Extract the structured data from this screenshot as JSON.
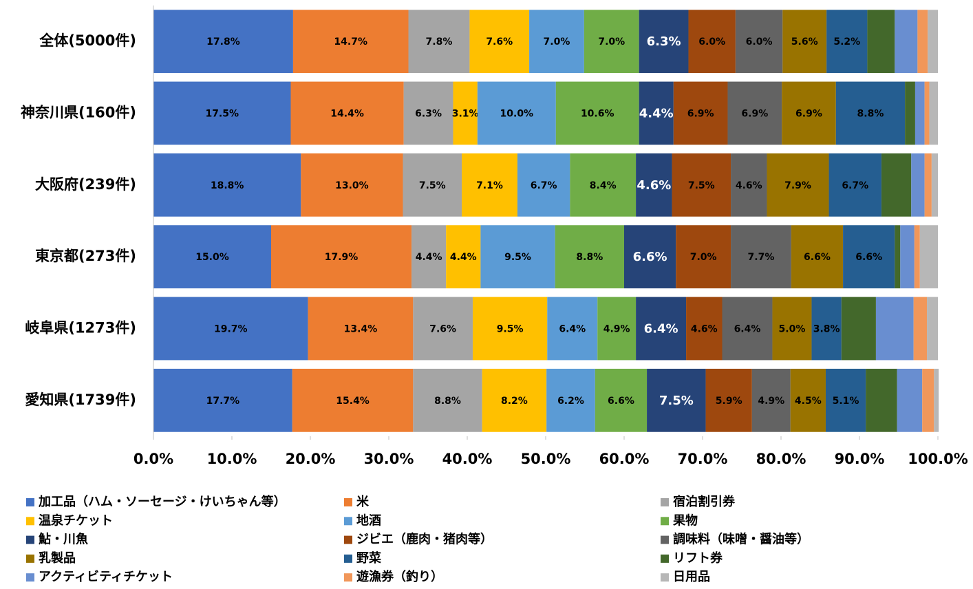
{
  "chart_data": {
    "type": "stacked_bar_horizontal",
    "categories": [
      "全体(5000件)",
      "神奈川県(160件)",
      "大阪府(239件)",
      "東京都(273件)",
      "岐阜県(1273件)",
      "愛知県(1739件)"
    ],
    "xlim": [
      0,
      100
    ],
    "xticks": [
      {
        "value": 0,
        "label": "0.0%"
      },
      {
        "value": 10,
        "label": "10.0%"
      },
      {
        "value": 20,
        "label": "20.0%"
      },
      {
        "value": 30,
        "label": "30.0%"
      },
      {
        "value": 40,
        "label": "40.0%"
      },
      {
        "value": 50,
        "label": "50.0%"
      },
      {
        "value": 60,
        "label": "60.0%"
      },
      {
        "value": 70,
        "label": "70.0%"
      },
      {
        "value": 80,
        "label": "80.0%"
      },
      {
        "value": 90,
        "label": "90.0%"
      },
      {
        "value": 100,
        "label": "100.0%"
      }
    ],
    "legend": "bottom",
    "series": [
      {
        "name": "加工品（ハム・ソーセージ・けいちゃん等）",
        "color": "#4472c4",
        "values": [
          17.8,
          17.5,
          18.8,
          15.0,
          19.7,
          17.7
        ],
        "value_labels": [
          "17.8%",
          "17.5%",
          "18.8%",
          "15.0%",
          "19.7%",
          "17.7%"
        ]
      },
      {
        "name": "米",
        "color": "#ed7d31",
        "values": [
          14.7,
          14.4,
          13.0,
          17.9,
          13.4,
          15.4
        ],
        "value_labels": [
          "14.7%",
          "14.4%",
          "13.0%",
          "17.9%",
          "13.4%",
          "15.4%"
        ]
      },
      {
        "name": "宿泊割引券",
        "color": "#a5a5a5",
        "values": [
          7.8,
          6.3,
          7.5,
          4.4,
          7.6,
          8.8
        ],
        "value_labels": [
          "7.8%",
          "6.3%",
          "7.5%",
          "4.4%",
          "7.6%",
          "8.8%"
        ]
      },
      {
        "name": "温泉チケット",
        "color": "#ffc000",
        "values": [
          7.6,
          3.1,
          7.1,
          4.4,
          9.5,
          8.2
        ],
        "value_labels": [
          "7.6%",
          "3.1%",
          "7.1%",
          "4.4%",
          "9.5%",
          "8.2%"
        ]
      },
      {
        "name": "地酒",
        "color": "#5b9bd5",
        "values": [
          7.0,
          10.0,
          6.7,
          9.5,
          6.4,
          6.2
        ],
        "value_labels": [
          "7.0%",
          "10.0%",
          "6.7%",
          "9.5%",
          "6.4%",
          "6.2%"
        ]
      },
      {
        "name": "果物",
        "color": "#70ad47",
        "values": [
          7.0,
          10.6,
          8.4,
          8.8,
          4.9,
          6.6
        ],
        "value_labels": [
          "7.0%",
          "10.6%",
          "8.4%",
          "8.8%",
          "4.9%",
          "6.6%"
        ]
      },
      {
        "name": "鮎・川魚",
        "color": "#264478",
        "values": [
          6.3,
          4.4,
          4.6,
          6.6,
          6.4,
          7.5
        ],
        "value_labels": [
          "6.3%",
          "4.4%",
          "4.6%",
          "6.6%",
          "6.4%",
          "7.5%"
        ]
      },
      {
        "name": "ジビエ（鹿肉・猪肉等）",
        "color": "#9e480e",
        "values": [
          6.0,
          6.9,
          7.5,
          7.0,
          4.6,
          5.9
        ],
        "value_labels": [
          "6.0%",
          "6.9%",
          "7.5%",
          "7.0%",
          "4.6%",
          "5.9%"
        ]
      },
      {
        "name": "調味料（味噌・醤油等）",
        "color": "#636363",
        "values": [
          6.0,
          6.9,
          4.6,
          7.7,
          6.4,
          4.9
        ],
        "value_labels": [
          "6.0%",
          "6.9%",
          "4.6%",
          "7.7%",
          "6.4%",
          "4.9%"
        ]
      },
      {
        "name": "乳製品",
        "color": "#997300",
        "values": [
          5.6,
          6.9,
          7.9,
          6.6,
          5.0,
          4.5
        ],
        "value_labels": [
          "5.6%",
          "6.9%",
          "7.9%",
          "6.6%",
          "5.0%",
          "4.5%"
        ]
      },
      {
        "name": "野菜",
        "color": "#255e91",
        "values": [
          5.2,
          8.8,
          6.7,
          6.6,
          3.8,
          5.1
        ],
        "value_labels": [
          "5.2%",
          "8.8%",
          "6.7%",
          "6.6%",
          "3.8%",
          "5.1%"
        ]
      },
      {
        "name": "リフト券",
        "color": "#43682b",
        "values": [
          3.5,
          1.3,
          3.8,
          0.7,
          4.4,
          4.0
        ]
      },
      {
        "name": "アクティビティチケット",
        "color": "#698ed0",
        "values": [
          2.9,
          1.2,
          1.7,
          1.8,
          4.8,
          3.2
        ]
      },
      {
        "name": "遊漁券（釣り）",
        "color": "#f1975a",
        "values": [
          1.3,
          0.6,
          0.9,
          0.7,
          1.7,
          1.5
        ]
      },
      {
        "name": "日用品",
        "color": "#b7b7b7",
        "values": [
          1.3,
          1.1,
          0.8,
          2.3,
          1.4,
          0.6
        ]
      }
    ]
  }
}
